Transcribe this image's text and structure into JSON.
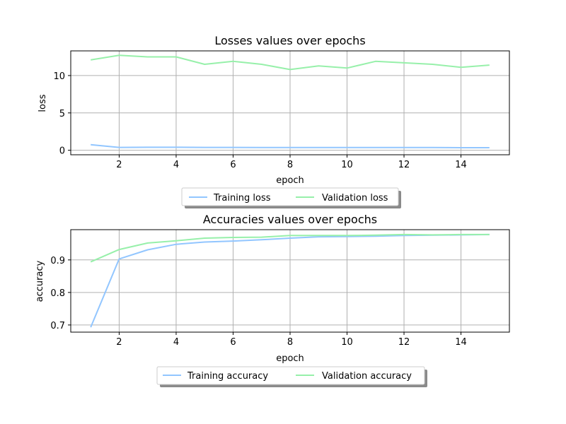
{
  "colors": {
    "training": "#92c6ff",
    "validation": "#97f0aa",
    "grid": "#b0b0b0",
    "axes": "#000000"
  },
  "chart_data": [
    {
      "type": "line",
      "title": "Losses values over epochs",
      "xlabel": "epoch",
      "ylabel": "loss",
      "xlim": [
        0.3,
        15.7
      ],
      "ylim": [
        -0.6,
        13.3
      ],
      "xticks": [
        2,
        4,
        6,
        8,
        10,
        12,
        14
      ],
      "yticks": [
        0,
        5,
        10
      ],
      "grid": true,
      "legend_position": "below",
      "series": [
        {
          "name": "Training loss",
          "color_key": "training",
          "x": [
            1,
            2,
            3,
            4,
            5,
            6,
            7,
            8,
            9,
            10,
            11,
            12,
            13,
            14,
            15
          ],
          "y": [
            0.75,
            0.38,
            0.4,
            0.4,
            0.38,
            0.38,
            0.37,
            0.37,
            0.36,
            0.36,
            0.36,
            0.36,
            0.36,
            0.35,
            0.35
          ]
        },
        {
          "name": "Validation loss",
          "color_key": "validation",
          "x": [
            1,
            2,
            3,
            4,
            5,
            6,
            7,
            8,
            9,
            10,
            11,
            12,
            13,
            14,
            15
          ],
          "y": [
            12.1,
            12.7,
            12.5,
            12.5,
            11.5,
            11.9,
            11.5,
            10.8,
            11.3,
            11.0,
            11.9,
            11.7,
            11.5,
            11.1,
            11.4
          ]
        }
      ]
    },
    {
      "type": "line",
      "title": "Accuracies values over epochs",
      "xlabel": "epoch",
      "ylabel": "accuracy",
      "xlim": [
        0.3,
        15.7
      ],
      "ylim": [
        0.678,
        0.993
      ],
      "xticks": [
        2,
        4,
        6,
        8,
        10,
        12,
        14
      ],
      "yticks": [
        0.7,
        0.8,
        0.9
      ],
      "grid": true,
      "legend_position": "below",
      "series": [
        {
          "name": "Training accuracy",
          "color_key": "training",
          "x": [
            1,
            2,
            3,
            4,
            5,
            6,
            7,
            8,
            9,
            10,
            11,
            12,
            13,
            14,
            15
          ],
          "y": [
            0.693,
            0.903,
            0.931,
            0.948,
            0.955,
            0.958,
            0.962,
            0.967,
            0.971,
            0.972,
            0.973,
            0.975,
            0.976,
            0.977,
            0.978
          ]
        },
        {
          "name": "Validation accuracy",
          "color_key": "validation",
          "x": [
            1,
            2,
            3,
            4,
            5,
            6,
            7,
            8,
            9,
            10,
            11,
            12,
            13,
            14,
            15
          ],
          "y": [
            0.894,
            0.932,
            0.952,
            0.959,
            0.967,
            0.969,
            0.97,
            0.975,
            0.975,
            0.975,
            0.976,
            0.978,
            0.977,
            0.978,
            0.978
          ]
        }
      ]
    }
  ]
}
